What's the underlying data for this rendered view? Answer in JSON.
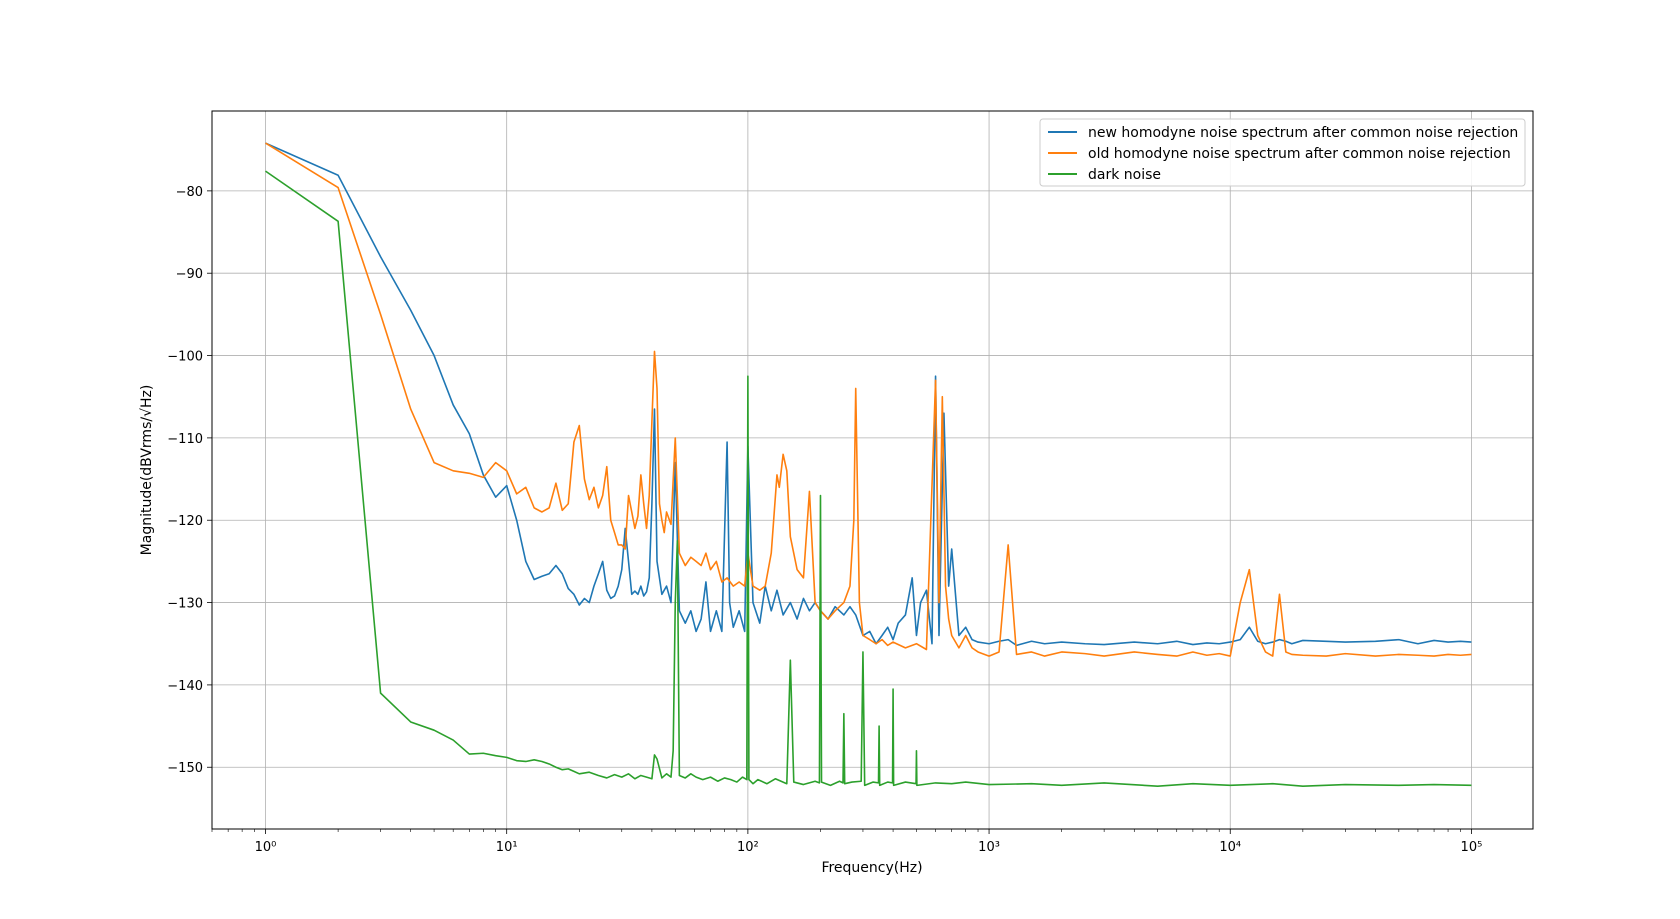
{
  "chart_data": {
    "type": "line",
    "title": "",
    "xlabel": "Frequency(Hz)",
    "ylabel": "Magnitude(dBVrms/√Hz)",
    "xscale": "log",
    "xlim": [
      0.6,
      180000
    ],
    "ylim": [
      -157.5,
      -70.3
    ],
    "xticks": [
      {
        "value": 1,
        "label": "10⁰"
      },
      {
        "value": 10,
        "label": "10¹"
      },
      {
        "value": 100,
        "label": "10²"
      },
      {
        "value": 1000,
        "label": "10³"
      },
      {
        "value": 10000,
        "label": "10⁴"
      },
      {
        "value": 100000,
        "label": "10⁵"
      }
    ],
    "yticks": [
      {
        "value": -80,
        "label": "−80"
      },
      {
        "value": -90,
        "label": "−90"
      },
      {
        "value": -100,
        "label": "−100"
      },
      {
        "value": -110,
        "label": "−110"
      },
      {
        "value": -120,
        "label": "−120"
      },
      {
        "value": -130,
        "label": "−130"
      },
      {
        "value": -140,
        "label": "−140"
      },
      {
        "value": -150,
        "label": "−150"
      }
    ],
    "grid": true,
    "legend_position": "top-right",
    "series": [
      {
        "name": "new homodyne noise spectrum after common noise rejection",
        "color": "#1f77b4",
        "x": [
          1,
          2,
          3,
          4,
          5,
          6,
          7,
          8,
          9,
          10,
          11,
          12,
          13,
          14,
          15,
          16,
          17,
          18,
          19,
          20,
          21,
          22,
          23,
          24,
          25,
          26,
          27,
          28,
          29,
          30,
          31,
          32,
          33,
          34,
          35,
          36,
          37,
          38,
          39,
          40,
          41,
          42,
          44,
          46,
          48,
          50,
          52,
          55,
          58,
          61,
          64,
          67,
          70,
          74,
          78,
          82,
          84,
          87,
          92,
          97,
          100,
          105,
          112,
          118,
          125,
          132,
          140,
          150,
          160,
          170,
          180,
          190,
          200,
          215,
          230,
          250,
          265,
          280,
          300,
          320,
          340,
          360,
          380,
          400,
          420,
          450,
          480,
          500,
          520,
          550,
          580,
          600,
          620,
          650,
          680,
          700,
          750,
          800,
          850,
          900,
          1000,
          1100,
          1200,
          1300,
          1500,
          1700,
          2000,
          2500,
          3000,
          4000,
          5000,
          6000,
          7000,
          8000,
          9000,
          10000,
          11000,
          12000,
          13000,
          14000,
          15000,
          16000,
          17000,
          18000,
          20000,
          25000,
          30000,
          40000,
          50000,
          60000,
          70000,
          80000,
          90000,
          100000
        ],
        "y": [
          -74.2,
          -78.1,
          -88.0,
          -94.5,
          -100.0,
          -106.0,
          -109.5,
          -114.5,
          -117.2,
          -115.8,
          -120.0,
          -125.0,
          -127.2,
          -126.8,
          -126.5,
          -125.5,
          -126.5,
          -128.3,
          -129.0,
          -130.3,
          -129.5,
          -130.0,
          -128.0,
          -126.5,
          -125.0,
          -128.5,
          -129.5,
          -129.2,
          -128.0,
          -126.0,
          -121.0,
          -125.0,
          -129.0,
          -128.6,
          -129.0,
          -128.0,
          -129.2,
          -128.7,
          -127.0,
          -118.0,
          -106.5,
          -125.0,
          -129.0,
          -128.0,
          -130.0,
          -113.0,
          -131.0,
          -132.5,
          -131.0,
          -133.5,
          -132.0,
          -127.5,
          -133.5,
          -131.0,
          -133.5,
          -110.5,
          -130.0,
          -133.0,
          -131.0,
          -133.5,
          -111.0,
          -130.0,
          -132.5,
          -128.0,
          -131.0,
          -128.5,
          -131.5,
          -130.0,
          -132.0,
          -129.5,
          -131.0,
          -130.0,
          -131.0,
          -132.0,
          -130.5,
          -131.5,
          -130.5,
          -131.5,
          -134.0,
          -133.5,
          -135.0,
          -134.0,
          -133.0,
          -134.5,
          -132.5,
          -131.5,
          -127.0,
          -134.0,
          -130.0,
          -128.5,
          -135.0,
          -102.5,
          -134.0,
          -107.0,
          -128.0,
          -123.5,
          -134.0,
          -133.0,
          -134.5,
          -134.8,
          -135.0,
          -134.7,
          -134.5,
          -135.2,
          -134.7,
          -135.0,
          -134.8,
          -135.0,
          -135.1,
          -134.8,
          -135.0,
          -134.7,
          -135.1,
          -134.9,
          -135.0,
          -134.8,
          -134.5,
          -133.0,
          -134.7,
          -135.0,
          -134.8,
          -134.5,
          -134.7,
          -135.0,
          -134.6,
          -134.7,
          -134.8,
          -134.7,
          -134.5,
          -135.0,
          -134.6,
          -134.8,
          -134.7,
          -134.8
        ]
      },
      {
        "name": "old homodyne noise spectrum after common noise rejection",
        "color": "#ff7f0e",
        "x": [
          1,
          2,
          3,
          4,
          5,
          6,
          7,
          8,
          9,
          10,
          11,
          12,
          13,
          14,
          15,
          16,
          17,
          18,
          19,
          20,
          21,
          22,
          23,
          24,
          25,
          26,
          27,
          28,
          29,
          30,
          31,
          32,
          33,
          34,
          35,
          36,
          37,
          38,
          39,
          40,
          41,
          42,
          43,
          44,
          45,
          46,
          48,
          50,
          52,
          55,
          58,
          61,
          64,
          67,
          70,
          74,
          78,
          82,
          87,
          92,
          97,
          100,
          105,
          112,
          118,
          125,
          132,
          135,
          140,
          145,
          150,
          160,
          170,
          180,
          190,
          200,
          215,
          230,
          250,
          265,
          275,
          280,
          290,
          300,
          320,
          340,
          360,
          380,
          400,
          450,
          500,
          550,
          600,
          620,
          640,
          660,
          680,
          700,
          750,
          800,
          850,
          900,
          1000,
          1100,
          1200,
          1300,
          1500,
          1700,
          2000,
          2500,
          3000,
          4000,
          5000,
          6000,
          7000,
          8000,
          9000,
          10000,
          11000,
          12000,
          13000,
          14000,
          15000,
          16000,
          17000,
          18000,
          20000,
          25000,
          30000,
          40000,
          50000,
          60000,
          70000,
          80000,
          90000,
          100000
        ],
        "y": [
          -74.2,
          -79.6,
          -95.0,
          -106.5,
          -113.0,
          -114.0,
          -114.3,
          -114.8,
          -113.0,
          -114.0,
          -116.8,
          -116.0,
          -118.5,
          -119.0,
          -118.5,
          -115.5,
          -118.8,
          -118.0,
          -110.5,
          -108.5,
          -115.0,
          -117.5,
          -116.0,
          -118.5,
          -117.0,
          -113.5,
          -120.0,
          -121.5,
          -123.0,
          -123.0,
          -123.5,
          -117.0,
          -119.0,
          -121.0,
          -119.5,
          -114.5,
          -118.0,
          -121.0,
          -117.0,
          -108.0,
          -99.5,
          -104.0,
          -118.0,
          -120.0,
          -121.5,
          -119.0,
          -120.5,
          -110.0,
          -124.0,
          -125.5,
          -124.5,
          -125.0,
          -125.5,
          -124.0,
          -126.0,
          -125.0,
          -127.5,
          -127.0,
          -128.0,
          -127.5,
          -128.0,
          -124.0,
          -128.0,
          -128.5,
          -128.0,
          -124.0,
          -114.5,
          -116.0,
          -112.0,
          -114.0,
          -122.0,
          -126.0,
          -127.0,
          -116.5,
          -130.0,
          -131.0,
          -132.0,
          -131.0,
          -130.0,
          -128.0,
          -120.0,
          -104.0,
          -130.0,
          -134.0,
          -134.5,
          -135.0,
          -134.5,
          -135.2,
          -134.8,
          -135.5,
          -135.0,
          -135.7,
          -103.0,
          -130.0,
          -105.0,
          -128.0,
          -132.0,
          -134.0,
          -135.5,
          -134.0,
          -135.5,
          -136.0,
          -136.5,
          -136.0,
          -123.0,
          -136.3,
          -136.0,
          -136.5,
          -136.0,
          -136.2,
          -136.5,
          -136.0,
          -136.3,
          -136.5,
          -136.0,
          -136.4,
          -136.2,
          -136.5,
          -130.0,
          -126.0,
          -134.0,
          -136.0,
          -136.5,
          -129.0,
          -136.0,
          -136.3,
          -136.4,
          -136.5,
          -136.2,
          -136.5,
          -136.3,
          -136.4,
          -136.5,
          -136.3,
          -136.4,
          -136.3
        ]
      },
      {
        "name": "dark noise",
        "color": "#2ca02c",
        "x": [
          1,
          2,
          3,
          4,
          5,
          6,
          7,
          8,
          9,
          10,
          11,
          12,
          13,
          14,
          15,
          16,
          17,
          18,
          19,
          20,
          22,
          24,
          26,
          28,
          30,
          32,
          34,
          36,
          38,
          40,
          41,
          42,
          44,
          46,
          48,
          49,
          50,
          51,
          52,
          55,
          58,
          61,
          65,
          70,
          75,
          80,
          85,
          90,
          95,
          99,
          100,
          101,
          105,
          110,
          120,
          130,
          145,
          150,
          155,
          170,
          190,
          198,
          200,
          202,
          220,
          240,
          248,
          250,
          252,
          270,
          295,
          300,
          305,
          330,
          348,
          350,
          352,
          380,
          398,
          400,
          402,
          450,
          498,
          500,
          502,
          600,
          700,
          800,
          1000,
          1500,
          2000,
          3000,
          5000,
          7000,
          10000,
          15000,
          20000,
          30000,
          50000,
          70000,
          100000
        ],
        "y": [
          -77.6,
          -83.7,
          -141.0,
          -144.5,
          -145.5,
          -146.7,
          -148.4,
          -148.3,
          -148.6,
          -148.8,
          -149.2,
          -149.3,
          -149.1,
          -149.3,
          -149.6,
          -150.0,
          -150.3,
          -150.2,
          -150.5,
          -150.8,
          -150.6,
          -151.0,
          -151.3,
          -150.9,
          -151.2,
          -150.8,
          -151.4,
          -151.0,
          -151.2,
          -151.4,
          -148.5,
          -149.0,
          -151.3,
          -150.8,
          -151.2,
          -148.0,
          -130.0,
          -122.5,
          -151.0,
          -151.3,
          -150.8,
          -151.2,
          -151.5,
          -151.2,
          -151.7,
          -151.3,
          -151.5,
          -151.8,
          -151.2,
          -151.5,
          -102.5,
          -151.5,
          -152.0,
          -151.5,
          -152.0,
          -151.4,
          -152.0,
          -137.0,
          -151.8,
          -152.1,
          -151.7,
          -151.9,
          -117.0,
          -151.8,
          -152.2,
          -151.7,
          -151.9,
          -143.5,
          -152.0,
          -151.8,
          -151.7,
          -136.0,
          -152.2,
          -151.8,
          -151.9,
          -145.0,
          -152.2,
          -151.8,
          -151.9,
          -140.5,
          -152.2,
          -151.8,
          -152.0,
          -148.0,
          -152.2,
          -151.9,
          -152.0,
          -151.8,
          -152.1,
          -152.0,
          -152.2,
          -151.9,
          -152.3,
          -152.0,
          -152.2,
          -152.0,
          -152.3,
          -152.1,
          -152.2,
          -152.1,
          -152.2
        ]
      }
    ]
  }
}
